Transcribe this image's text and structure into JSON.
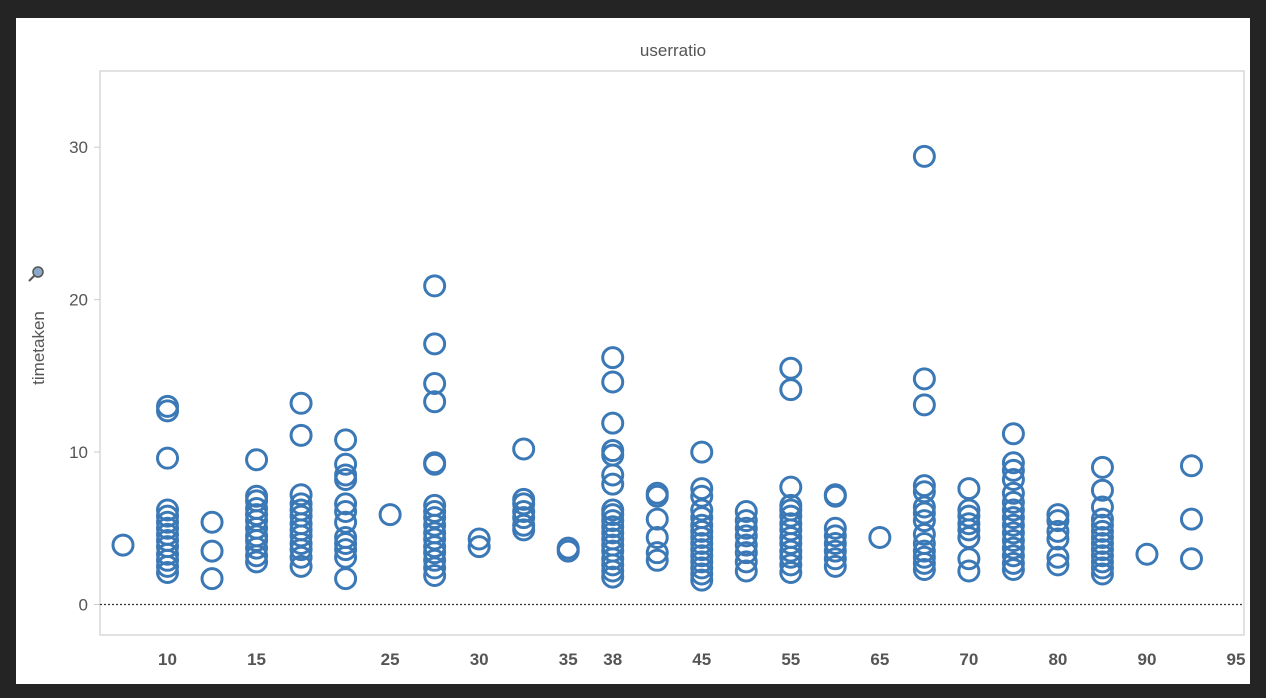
{
  "chart_data": {
    "type": "scatter",
    "title": "userratio",
    "xlabel": "",
    "ylabel": "timetaken",
    "ylim": [
      -2,
      35
    ],
    "yticks": [
      0,
      10,
      20,
      30
    ],
    "grid": false,
    "marker": "hollow-circle",
    "color": "#3b78b6",
    "reference_line": {
      "y": 0,
      "style": "dotted"
    },
    "categories": [
      "8",
      "10",
      "12",
      "15",
      "18",
      "20",
      "25",
      "28",
      "30",
      "32",
      "35",
      "38",
      "40",
      "45",
      "50",
      "55",
      "60",
      "65",
      "68",
      "70",
      "75",
      "80",
      "85",
      "90",
      "92",
      "95"
    ],
    "x_tick_labels": [
      "10",
      "15",
      "25",
      "30",
      "35",
      "38",
      "45",
      "55",
      "65",
      "70",
      "80",
      "90",
      "95"
    ],
    "series": [
      {
        "points": [
          {
            "x": "8",
            "y": [
              3.9
            ]
          },
          {
            "x": "10",
            "y": [
              13.0,
              12.7,
              9.6,
              6.2,
              5.8,
              5.4,
              5.0,
              4.6,
              4.2,
              3.8,
              3.3,
              2.9,
              2.5,
              2.1
            ]
          },
          {
            "x": "12",
            "y": [
              5.4,
              3.5,
              1.7
            ]
          },
          {
            "x": "15",
            "y": [
              9.5,
              7.1,
              6.8,
              6.3,
              5.9,
              5.5,
              5.0,
              4.5,
              4.2,
              3.7,
              3.2,
              2.8
            ]
          },
          {
            "x": "18",
            "y": [
              13.2,
              11.1,
              7.2,
              6.6,
              6.2,
              5.8,
              5.3,
              4.9,
              4.5,
              4.0,
              3.6,
              3.1,
              2.5
            ]
          },
          {
            "x": "20",
            "y": [
              10.8,
              9.2,
              8.5,
              8.2,
              6.6,
              6.1,
              5.4,
              4.4,
              4.0,
              3.6,
              3.1,
              1.7
            ]
          },
          {
            "x": "25",
            "y": [
              5.9
            ]
          },
          {
            "x": "28",
            "y": [
              20.9,
              17.1,
              14.5,
              13.3,
              9.3,
              9.2,
              6.5,
              6.1,
              5.7,
              5.2,
              4.7,
              4.3,
              3.8,
              3.4,
              2.9,
              2.4,
              1.9
            ]
          },
          {
            "x": "30",
            "y": [
              4.3,
              3.8
            ]
          },
          {
            "x": "32",
            "y": [
              10.2,
              6.9,
              6.6,
              6.1,
              5.7,
              5.2,
              4.9
            ]
          },
          {
            "x": "35",
            "y": [
              3.7,
              3.5
            ]
          },
          {
            "x": "38",
            "y": [
              16.2,
              14.6,
              11.9,
              10.1,
              9.8,
              8.5,
              7.9,
              6.2,
              5.9,
              5.5,
              5.1,
              4.7,
              4.3,
              3.9,
              3.5,
              3.0,
              2.6,
              2.2,
              1.8
            ]
          },
          {
            "x": "40",
            "y": [
              7.3,
              7.1,
              5.6,
              4.4,
              3.4,
              2.9
            ]
          },
          {
            "x": "45",
            "y": [
              10.0,
              7.6,
              7.1,
              6.2,
              5.7,
              5.2,
              4.8,
              4.4,
              4.0,
              3.6,
              3.2,
              2.8,
              2.4,
              2.0,
              1.6
            ]
          },
          {
            "x": "50",
            "y": [
              6.1,
              5.5,
              5.0,
              4.5,
              3.9,
              3.4,
              2.8,
              2.2
            ]
          },
          {
            "x": "55",
            "y": [
              15.5,
              14.1,
              7.7,
              6.5,
              6.2,
              5.8,
              5.3,
              4.9,
              4.4,
              4.0,
              3.5,
              3.1,
              2.6,
              2.1
            ]
          },
          {
            "x": "60",
            "y": [
              7.2,
              7.1,
              5.0,
              4.5,
              4.0,
              3.5,
              3.0,
              2.5
            ]
          },
          {
            "x": "65",
            "y": [
              4.4
            ]
          },
          {
            "x": "68",
            "y": [
              29.4,
              14.8,
              13.1,
              7.8,
              7.4,
              6.4,
              6.0,
              5.5,
              4.6,
              4.0,
              3.5,
              3.1,
              2.7,
              2.3
            ]
          },
          {
            "x": "70",
            "y": [
              7.6,
              6.2,
              5.8,
              5.3,
              4.9,
              4.4,
              3.0,
              2.2
            ]
          },
          {
            "x": "75",
            "y": [
              11.2,
              9.3,
              8.8,
              8.2,
              7.3,
              6.7,
              6.2,
              5.7,
              5.2,
              4.7,
              4.2,
              3.7,
              3.2,
              2.7,
              2.3
            ]
          },
          {
            "x": "80",
            "y": [
              5.9,
              5.5,
              4.8,
              4.3,
              3.1,
              2.6
            ]
          },
          {
            "x": "85",
            "y": [
              9.0,
              7.5,
              6.4,
              5.6,
              5.2,
              4.8,
              4.4,
              4.0,
              3.6,
              3.2,
              2.8,
              2.4,
              2.0
            ]
          },
          {
            "x": "90",
            "y": [
              3.3
            ]
          },
          {
            "x": "92",
            "y": [
              9.1,
              5.6,
              3.0
            ]
          }
        ]
      }
    ]
  }
}
